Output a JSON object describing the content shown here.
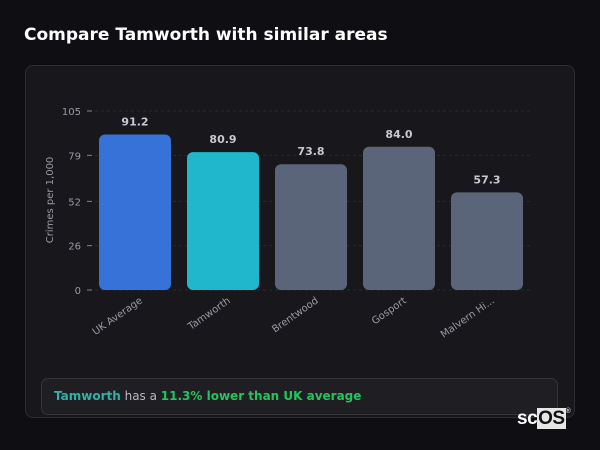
{
  "title": "Compare Tamworth with similar areas",
  "chart_data": {
    "type": "bar",
    "categories": [
      "UK Average",
      "Tamworth",
      "Brentwood",
      "Gosport",
      "Malvern Hi..."
    ],
    "values": [
      91.2,
      80.9,
      73.8,
      84.0,
      57.3
    ],
    "value_labels": [
      "91.2",
      "80.9",
      "73.8",
      "84.0",
      "57.3"
    ],
    "colors": [
      "#3672d8",
      "#20b6cc",
      "#5b6579",
      "#5b6579",
      "#5b6579"
    ],
    "xlabel": "",
    "ylabel": "Crimes per 1,000",
    "ylim": [
      0,
      105
    ],
    "yticks": [
      0,
      26,
      52,
      79,
      105
    ],
    "grid": true
  },
  "insight": {
    "area": "Tamworth",
    "middle": " has a ",
    "highlight": "11.3% lower than UK average"
  },
  "logo": {
    "text_a": "sc",
    "text_b": "OS",
    "mark": "®"
  }
}
